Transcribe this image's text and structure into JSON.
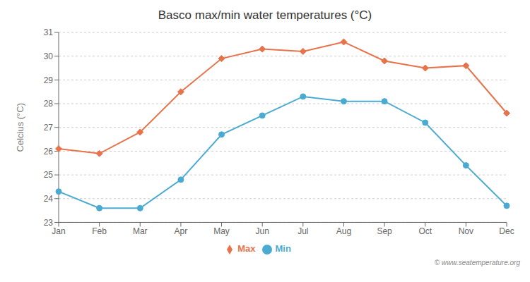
{
  "chart_data": {
    "type": "line",
    "title": "Basco max/min water temperatures (°C)",
    "ylabel": "Celcius (°C)",
    "categories": [
      "Jan",
      "Feb",
      "Mar",
      "Apr",
      "May",
      "Jun",
      "Jul",
      "Aug",
      "Sep",
      "Oct",
      "Nov",
      "Dec"
    ],
    "series": [
      {
        "name": "Max",
        "color": "#e8724a",
        "marker": "diamond",
        "values": [
          26.1,
          25.9,
          26.8,
          28.5,
          29.9,
          30.3,
          30.2,
          30.6,
          29.8,
          29.5,
          29.6,
          27.6
        ]
      },
      {
        "name": "Min",
        "color": "#4aaad2",
        "marker": "circle",
        "values": [
          24.3,
          23.6,
          23.6,
          24.8,
          26.7,
          27.5,
          28.3,
          28.1,
          28.1,
          27.2,
          25.4,
          23.7
        ]
      }
    ],
    "ylim": [
      23,
      31
    ],
    "yticks": [
      23,
      24,
      25,
      26,
      27,
      28,
      29,
      30,
      31
    ],
    "grid": true,
    "legend": "bottom",
    "annotations": [
      "© www.seatemperature.org"
    ]
  }
}
